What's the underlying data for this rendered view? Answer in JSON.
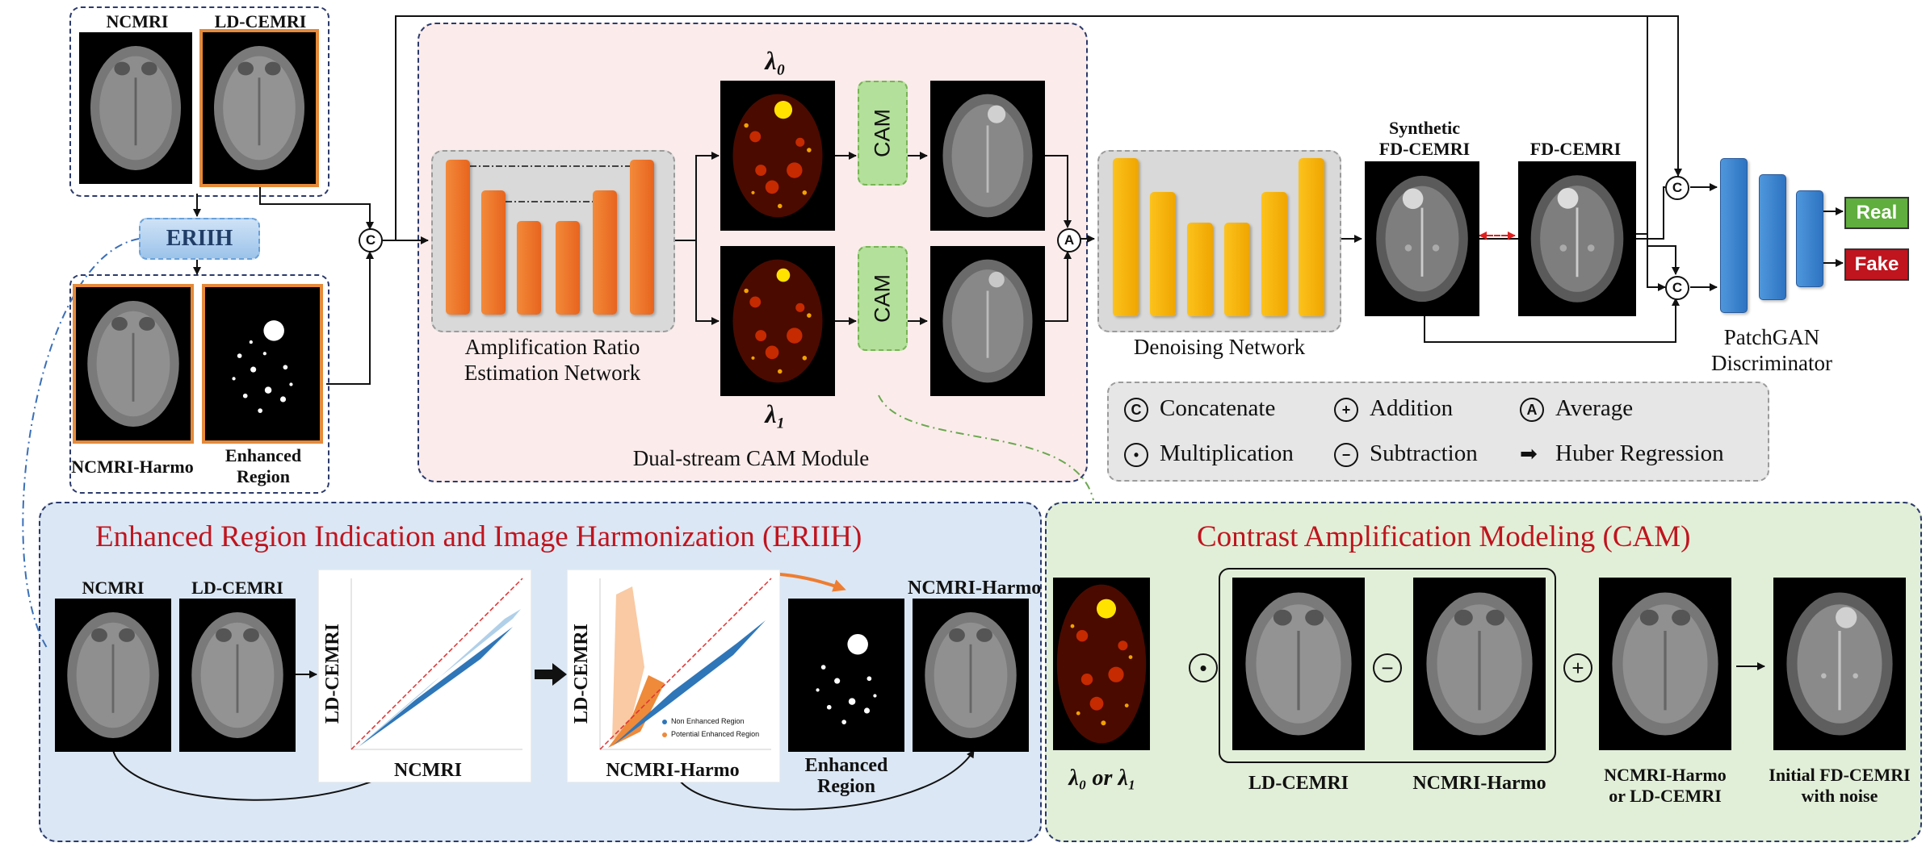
{
  "top": {
    "ncmri": "NCMRI",
    "ld_cemri": "LD-CEMRI",
    "eriih_pill": "ERIIH",
    "ncmri_harmo": "NCMRI-Harmo",
    "enhanced_region": "Enhanced Region",
    "concat_symbol": "C",
    "average_symbol": "A",
    "amp_net_line1": "Amplification Ratio",
    "amp_net_line2": "Estimation Network",
    "lambda0": "λ₀",
    "lambda1": "λ₁",
    "cam_label": "CAM",
    "dual_stream_label": "Dual-stream CAM Module",
    "denoising_label": "Denoising Network",
    "synthetic_line1": "Synthetic",
    "synthetic_line2": "FD-CEMRI",
    "fd_cemri": "FD-CEMRI",
    "patchgan_line1": "PatchGAN",
    "patchgan_line2": "Discriminator",
    "real": "Real",
    "fake": "Fake"
  },
  "legend": {
    "concatenate": "Concatenate",
    "addition": "Addition",
    "average": "Average",
    "multiplication": "Multiplication",
    "subtraction": "Subtraction",
    "huber": "Huber Regression",
    "sym_c": "C",
    "sym_plus": "+",
    "sym_a": "A",
    "sym_dot": "•",
    "sym_minus": "−"
  },
  "eriih": {
    "title": "Enhanced Region Indication and Image Harmonization (ERIIH)",
    "ncmri": "NCMRI",
    "ld_cemri": "LD-CEMRI",
    "scatter1_x": "NCMRI",
    "scatter1_y": "LD-CEMRI",
    "scatter2_x": "NCMRI-Harmo",
    "scatter2_y": "LD-CEMRI",
    "legend_non": "Non Enhanced Region",
    "legend_pot": "Potential Enhanced Region",
    "enhanced_line1": "Enhanced",
    "enhanced_line2": "Region",
    "ncmri_harmo": "NCMRI-Harmo"
  },
  "cam": {
    "title": "Contrast Amplification Modeling (CAM)",
    "lambda_or": "λ₀ or λ₁",
    "ld_cemri": "LD-CEMRI",
    "ncmri_harmo": "NCMRI-Harmo",
    "input_line1": "NCMRI-Harmo",
    "input_line2": "or LD-CEMRI",
    "output_line1": "Initial FD-CEMRI",
    "output_line2": "with noise",
    "op_mult": "•",
    "op_minus": "−",
    "op_plus": "+"
  },
  "colors": {
    "orange_bar": "#e8641e",
    "yellow_bar": "#f0a500",
    "blue_bar": "#2d73c2",
    "cam_green": "#b3e09a",
    "real_green": "#5fae3e",
    "fake_red": "#c0141e",
    "eriih_bg": "#dbe7f4",
    "cam_bg": "#e2efd8",
    "dual_bg": "#fbeceb",
    "title_red": "#c0141e"
  }
}
